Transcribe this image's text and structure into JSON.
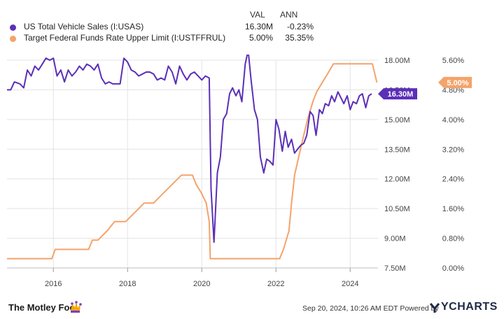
{
  "legend": {
    "col_val": "VAL",
    "col_ann": "ANN",
    "rows": [
      {
        "name": "US Total Vehicle Sales (I:USAS)",
        "val": "16.30M",
        "ann": "-0.23%",
        "color": "#5b2fb8"
      },
      {
        "name": "Target Federal Funds Rate Upper Limit (I:USTFFRUL)",
        "val": "5.00%",
        "ann": "35.35%",
        "color": "#f4a36b"
      }
    ]
  },
  "chart_data": {
    "type": "line",
    "x_ticks": [
      "2016",
      "2018",
      "2020",
      "2022",
      "2024"
    ],
    "y_left": {
      "ticks": [
        "7.50M",
        "9.00M",
        "10.50M",
        "12.00M",
        "13.50M",
        "15.00M",
        "16.50M",
        "18.00M"
      ],
      "range": [
        7.5,
        18.0
      ],
      "unit": "M"
    },
    "y_right": {
      "ticks": [
        "0.00%",
        "0.80%",
        "1.60%",
        "2.40%",
        "3.20%",
        "4.00%",
        "4.80%",
        "5.60%"
      ],
      "range": [
        0.0,
        5.6
      ],
      "unit": "%"
    },
    "grid": true,
    "end_labels": {
      "vehicle_sales": "16.30M",
      "fed_rate": "5.00%"
    },
    "series": [
      {
        "name": "US Total Vehicle Sales (I:USAS)",
        "axis": "left",
        "color": "#5b2fb8",
        "points": [
          [
            2014.75,
            16.5
          ],
          [
            2014.85,
            16.5
          ],
          [
            2014.95,
            16.9
          ],
          [
            2015.1,
            16.8
          ],
          [
            2015.2,
            16.6
          ],
          [
            2015.3,
            17.5
          ],
          [
            2015.4,
            17.2
          ],
          [
            2015.5,
            17.7
          ],
          [
            2015.6,
            17.5
          ],
          [
            2015.7,
            17.8
          ],
          [
            2015.8,
            18.1
          ],
          [
            2015.9,
            18.0
          ],
          [
            2016.0,
            18.1
          ],
          [
            2016.1,
            17.2
          ],
          [
            2016.2,
            17.5
          ],
          [
            2016.3,
            16.9
          ],
          [
            2016.4,
            17.5
          ],
          [
            2016.5,
            17.2
          ],
          [
            2016.6,
            17.4
          ],
          [
            2016.7,
            17.7
          ],
          [
            2016.8,
            17.5
          ],
          [
            2016.9,
            17.8
          ],
          [
            2017.0,
            17.7
          ],
          [
            2017.1,
            17.5
          ],
          [
            2017.2,
            17.8
          ],
          [
            2017.3,
            17.1
          ],
          [
            2017.4,
            16.8
          ],
          [
            2017.5,
            16.9
          ],
          [
            2017.6,
            16.8
          ],
          [
            2017.7,
            16.8
          ],
          [
            2017.8,
            16.8
          ],
          [
            2017.9,
            18.1
          ],
          [
            2018.0,
            17.9
          ],
          [
            2018.1,
            17.5
          ],
          [
            2018.2,
            17.4
          ],
          [
            2018.3,
            17.2
          ],
          [
            2018.4,
            17.3
          ],
          [
            2018.5,
            17.4
          ],
          [
            2018.6,
            17.4
          ],
          [
            2018.7,
            17.3
          ],
          [
            2018.8,
            17.0
          ],
          [
            2018.9,
            17.1
          ],
          [
            2019.0,
            17.0
          ],
          [
            2019.1,
            17.7
          ],
          [
            2019.2,
            17.4
          ],
          [
            2019.3,
            16.8
          ],
          [
            2019.4,
            17.7
          ],
          [
            2019.5,
            17.3
          ],
          [
            2019.6,
            17.0
          ],
          [
            2019.7,
            17.3
          ],
          [
            2019.8,
            17.4
          ],
          [
            2019.9,
            17.2
          ],
          [
            2020.0,
            17.0
          ],
          [
            2020.1,
            17.2
          ],
          [
            2020.2,
            17.1
          ],
          [
            2020.25,
            11.5
          ],
          [
            2020.33,
            8.8
          ],
          [
            2020.42,
            12.3
          ],
          [
            2020.5,
            13.1
          ],
          [
            2020.58,
            15.0
          ],
          [
            2020.67,
            15.3
          ],
          [
            2020.75,
            16.3
          ],
          [
            2020.83,
            16.6
          ],
          [
            2020.92,
            16.2
          ],
          [
            2021.0,
            16.5
          ],
          [
            2021.08,
            15.9
          ],
          [
            2021.17,
            17.8
          ],
          [
            2021.25,
            18.5
          ],
          [
            2021.33,
            17.0
          ],
          [
            2021.42,
            15.5
          ],
          [
            2021.5,
            15.0
          ],
          [
            2021.58,
            13.1
          ],
          [
            2021.67,
            12.3
          ],
          [
            2021.75,
            13.0
          ],
          [
            2021.83,
            12.9
          ],
          [
            2021.92,
            12.7
          ],
          [
            2022.0,
            15.0
          ],
          [
            2022.08,
            14.5
          ],
          [
            2022.17,
            13.4
          ],
          [
            2022.25,
            14.4
          ],
          [
            2022.33,
            13.6
          ],
          [
            2022.42,
            14.0
          ],
          [
            2022.5,
            13.3
          ],
          [
            2022.58,
            13.5
          ],
          [
            2022.67,
            13.7
          ],
          [
            2022.75,
            13.8
          ],
          [
            2022.83,
            14.2
          ],
          [
            2022.92,
            15.4
          ],
          [
            2023.0,
            15.2
          ],
          [
            2023.08,
            14.2
          ],
          [
            2023.17,
            15.5
          ],
          [
            2023.25,
            15.3
          ],
          [
            2023.33,
            15.8
          ],
          [
            2023.42,
            15.7
          ],
          [
            2023.5,
            16.2
          ],
          [
            2023.58,
            15.9
          ],
          [
            2023.67,
            16.4
          ],
          [
            2023.75,
            16.1
          ],
          [
            2023.83,
            15.8
          ],
          [
            2023.92,
            16.2
          ],
          [
            2024.0,
            15.5
          ],
          [
            2024.08,
            15.9
          ],
          [
            2024.17,
            15.8
          ],
          [
            2024.25,
            16.2
          ],
          [
            2024.33,
            16.3
          ],
          [
            2024.42,
            15.6
          ],
          [
            2024.5,
            16.2
          ],
          [
            2024.58,
            16.3
          ]
        ]
      },
      {
        "name": "Target Federal Funds Rate Upper Limit (I:USTFFRUL)",
        "axis": "right",
        "color": "#f4a36b",
        "points": [
          [
            2014.75,
            0.25
          ],
          [
            2015.96,
            0.25
          ],
          [
            2016.05,
            0.5
          ],
          [
            2016.95,
            0.5
          ],
          [
            2017.05,
            0.75
          ],
          [
            2017.2,
            0.75
          ],
          [
            2017.45,
            1.0
          ],
          [
            2017.65,
            1.25
          ],
          [
            2017.95,
            1.25
          ],
          [
            2018.2,
            1.5
          ],
          [
            2018.45,
            1.75
          ],
          [
            2018.7,
            1.75
          ],
          [
            2018.95,
            2.0
          ],
          [
            2019.2,
            2.25
          ],
          [
            2019.45,
            2.5
          ],
          [
            2019.5,
            2.5
          ],
          [
            2019.75,
            2.5
          ],
          [
            2019.85,
            2.25
          ],
          [
            2020.0,
            2.0
          ],
          [
            2020.12,
            1.75
          ],
          [
            2020.2,
            1.25
          ],
          [
            2020.23,
            0.25
          ],
          [
            2022.1,
            0.25
          ],
          [
            2022.2,
            0.5
          ],
          [
            2022.35,
            1.0
          ],
          [
            2022.42,
            1.75
          ],
          [
            2022.5,
            2.5
          ],
          [
            2022.67,
            3.25
          ],
          [
            2022.85,
            4.0
          ],
          [
            2023.0,
            4.5
          ],
          [
            2023.1,
            4.75
          ],
          [
            2023.25,
            5.0
          ],
          [
            2023.4,
            5.25
          ],
          [
            2023.55,
            5.5
          ],
          [
            2024.6,
            5.5
          ],
          [
            2024.72,
            5.0
          ]
        ]
      }
    ]
  },
  "footer": {
    "brand": "The Motley Fool",
    "credit": "Sep 20, 2024, 10:26 AM EDT Powered by",
    "ycharts": "YCHARTS"
  }
}
